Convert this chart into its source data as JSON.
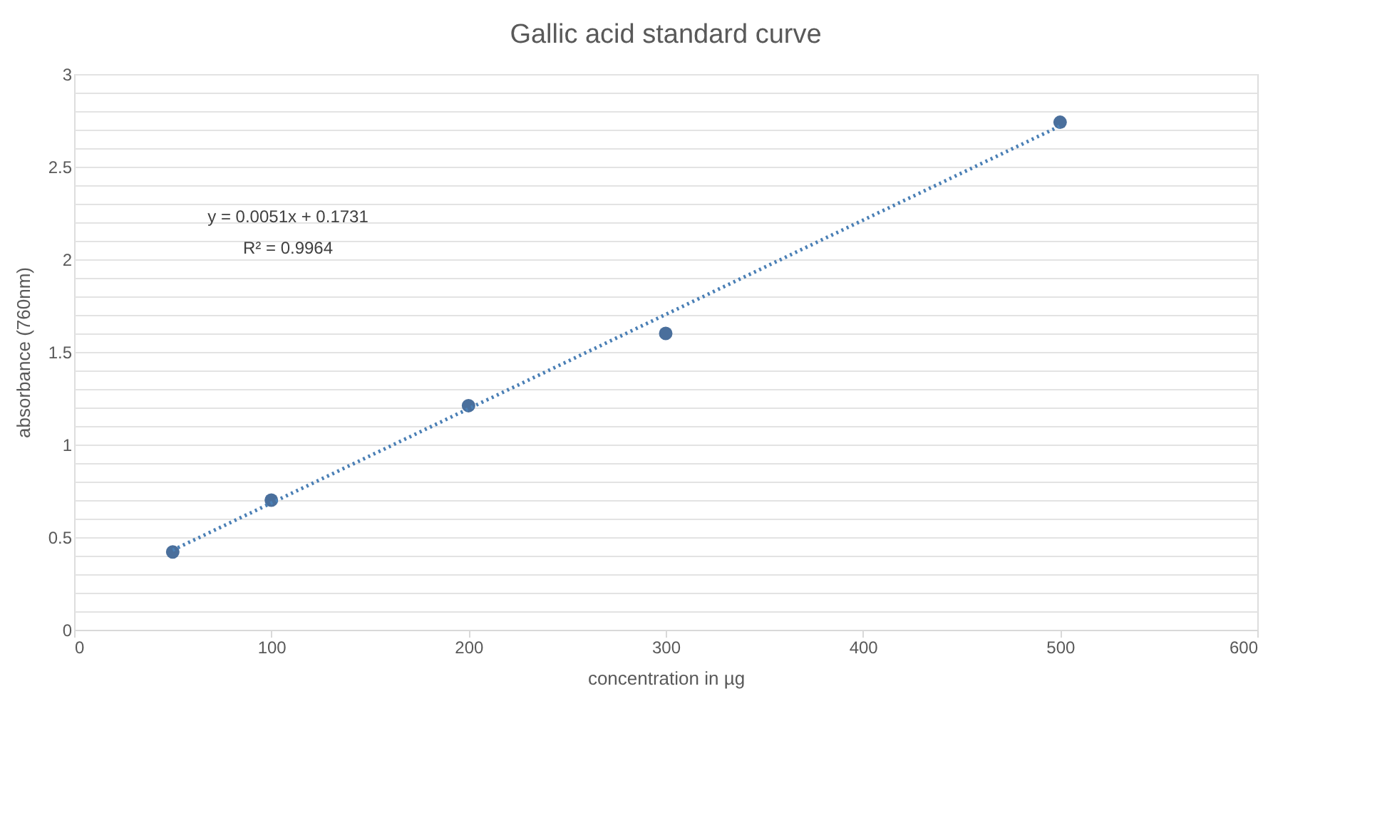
{
  "chart_data": {
    "type": "scatter",
    "title": "Gallic acid standard curve",
    "xlabel": "concentration in µg",
    "ylabel": "absorbance (760nm)",
    "series": [
      {
        "color": "#4a6f9c",
        "x": [
          50,
          100,
          200,
          300,
          500
        ],
        "values": [
          0.42,
          0.7,
          1.21,
          1.6,
          2.74
        ],
        "marker": "circle"
      },
      {
        "type": "line",
        "color": "#4a7fb5",
        "x": [
          50,
          500
        ],
        "values": [
          0.43,
          2.72
        ],
        "line_style": "dotted",
        "marker": "none"
      }
    ],
    "annotations": [
      "y = 0.0051x + 0.1731",
      "R² = 0.9964"
    ],
    "xlim": [
      0,
      600
    ],
    "xticks": [
      0,
      100,
      200,
      300,
      400,
      500,
      600
    ],
    "ylim": [
      0,
      3
    ],
    "yticks": [
      0,
      {
        "value": 0.1,
        "label": null
      },
      {
        "value": 0.2,
        "label": null
      },
      {
        "value": 0.3,
        "label": null
      },
      {
        "value": 0.4,
        "label": null
      },
      0.5,
      {
        "value": 0.6,
        "label": null
      },
      {
        "value": 0.7,
        "label": null
      },
      {
        "value": 0.8,
        "label": null
      },
      {
        "value": 0.9,
        "label": null
      },
      1,
      {
        "value": 1.1,
        "label": null
      },
      {
        "value": 1.2,
        "label": null
      },
      {
        "value": 1.3,
        "label": null
      },
      {
        "value": 1.4,
        "label": null
      },
      1.5,
      {
        "value": 1.6,
        "label": null
      },
      {
        "value": 1.7,
        "label": null
      },
      {
        "value": 1.8,
        "label": null
      },
      {
        "value": 1.9,
        "label": null
      },
      2,
      {
        "value": 2.1,
        "label": null
      },
      {
        "value": 2.2,
        "label": null
      },
      {
        "value": 2.3,
        "label": null
      },
      {
        "value": 2.4,
        "label": null
      },
      2.5,
      {
        "value": 2.6,
        "label": null
      },
      {
        "value": 2.7,
        "label": null
      },
      {
        "value": 2.8,
        "label": null
      },
      {
        "value": 2.9,
        "label": null
      },
      3
    ],
    "grid": "y"
  }
}
